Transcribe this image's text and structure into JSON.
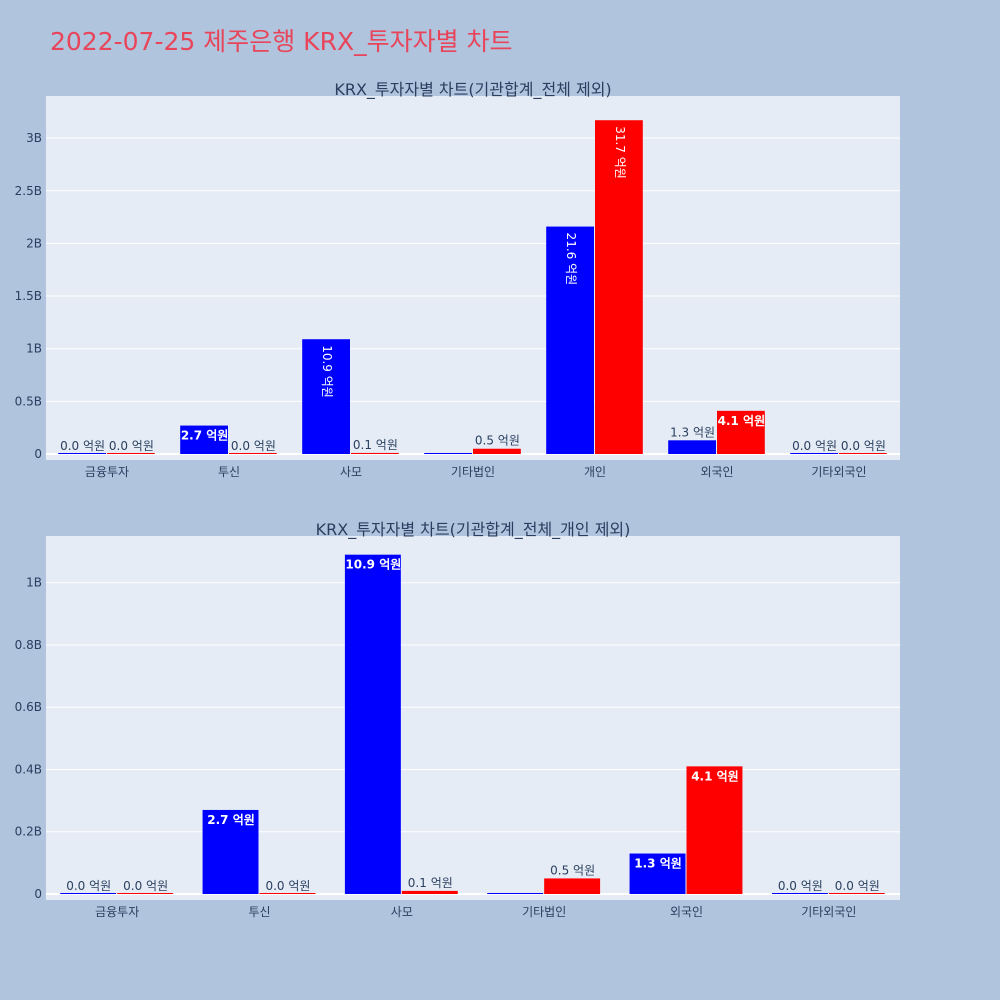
{
  "page": {
    "title": "2022-07-25 제주은행 KRX_투자자별 차트"
  },
  "colors": {
    "page_background": "#b0c4de",
    "plot_background": "#e5ecf6",
    "buy": "#0000ff",
    "sell": "#ff0000",
    "title": "#e8455a",
    "text": "#2a3f5f"
  },
  "chart_data": [
    {
      "type": "bar",
      "title": "KRX_투자자별 차트(기관합계_전체 제외)",
      "categories": [
        "금융투자",
        "투신",
        "사모",
        "기타법인",
        "개인",
        "외국인",
        "기타외국인"
      ],
      "series": [
        {
          "color": "#0000ff",
          "values": [
            0,
            270000000,
            1090000000,
            0,
            2160000000,
            130000000,
            0
          ],
          "labels": [
            "0.0 억원",
            "2.7 억원",
            "10.9 억원",
            "",
            "21.6 억원",
            "1.3 억원",
            "0.0 억원"
          ]
        },
        {
          "color": "#ff0000",
          "values": [
            0,
            0,
            10000000,
            50000000,
            3170000000,
            410000000,
            0
          ],
          "labels": [
            "0.0 억원",
            "0.0 억원",
            "0.1 억원",
            "0.5 억원",
            "31.7 억원",
            "4.1 억원",
            "0.0 억원"
          ]
        }
      ],
      "ylim": [
        0,
        3400000000
      ],
      "yticks": [
        0,
        500000000,
        1000000000,
        1500000000,
        2000000000,
        2500000000,
        3000000000
      ],
      "yticklabels": [
        "0",
        "0.5B",
        "1B",
        "1.5B",
        "2B",
        "2.5B",
        "3B"
      ],
      "grid": true
    },
    {
      "type": "bar",
      "title": "KRX_투자자별 차트(기관합계_전체_개인 제외)",
      "categories": [
        "금융투자",
        "투신",
        "사모",
        "기타법인",
        "외국인",
        "기타외국인"
      ],
      "series": [
        {
          "color": "#0000ff",
          "values": [
            0,
            270000000,
            1090000000,
            0,
            130000000,
            0
          ],
          "labels": [
            "0.0 억원",
            "2.7 억원",
            "10.9 억원",
            "",
            "1.3 억원",
            "0.0 억원"
          ]
        },
        {
          "color": "#ff0000",
          "values": [
            0,
            0,
            10000000,
            50000000,
            410000000,
            0
          ],
          "labels": [
            "0.0 억원",
            "0.0 억원",
            "0.1 억원",
            "0.5 억원",
            "4.1 억원",
            "0.0 억원"
          ]
        }
      ],
      "ylim": [
        0,
        1150000000
      ],
      "yticks": [
        0,
        200000000,
        400000000,
        600000000,
        800000000,
        1000000000
      ],
      "yticklabels": [
        "0",
        "0.2B",
        "0.4B",
        "0.6B",
        "0.8B",
        "1B"
      ],
      "grid": true
    }
  ]
}
